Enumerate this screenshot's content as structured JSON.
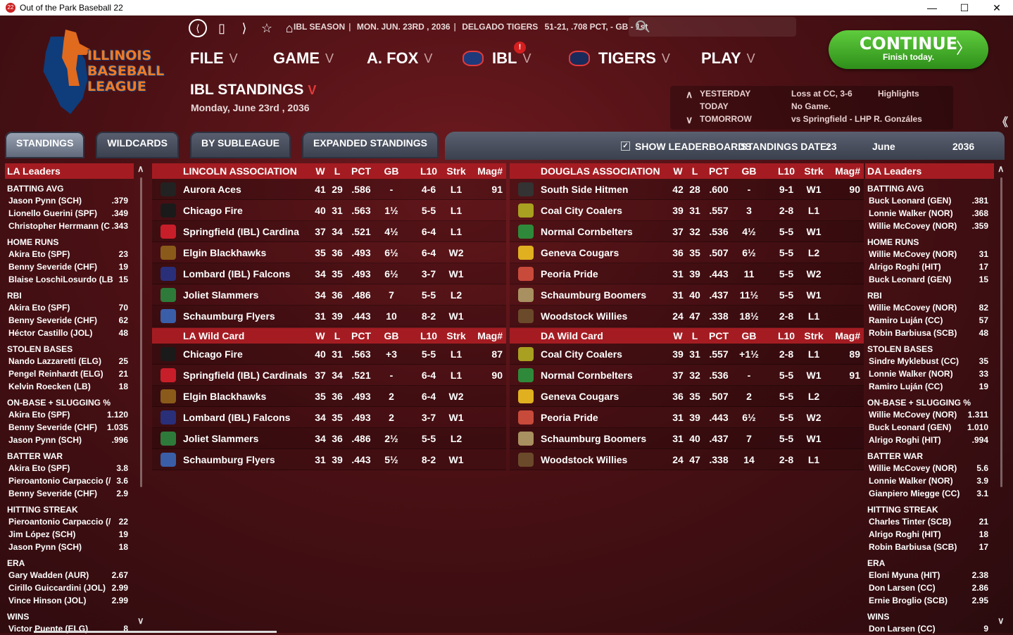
{
  "window": {
    "title": "Out of the Park Baseball 22",
    "app_icon": "22",
    "minimize": "—",
    "maximize": "☐",
    "close": "✕"
  },
  "logo": {
    "line1": "ILLINOIS",
    "line2": "BASEBALL",
    "line3": "LEAGUE"
  },
  "nav": {
    "back": "⟨",
    "doc": "▯",
    "forward": "⟩",
    "star": "☆",
    "home": "⌂"
  },
  "info": {
    "season": "IBL SEASON",
    "date": "MON. JUN. 23RD , 2036",
    "team": "DELGADO TIGERS",
    "record": "51-21, .708 PCT, - GB - 1st"
  },
  "menus": [
    {
      "label": "FILE"
    },
    {
      "label": "GAME"
    },
    {
      "label": "A. FOX"
    },
    {
      "label": "IBL",
      "badge": "!"
    },
    {
      "label": "TIGERS"
    },
    {
      "label": "PLAY"
    }
  ],
  "chevron": "V",
  "continue": {
    "label": "CONTINUE",
    "sub": "Finish today.",
    "arrow": "〉"
  },
  "page": {
    "title": "IBL STANDINGS",
    "date": "Monday, June 23rd , 2036"
  },
  "schedule": {
    "yesterday_label": "YESTERDAY",
    "yesterday": "Loss at CC, 3-6",
    "highlights": "Highlights",
    "today_label": "TODAY",
    "today": "No Game.",
    "tomorrow_label": "TOMORROW",
    "tomorrow": "vs Springfield - LHP R. Gonzáles"
  },
  "tabs": [
    "STANDINGS",
    "WILDCARDS",
    "BY SUBLEAGUE",
    "EXPANDED STANDINGS"
  ],
  "options": {
    "check": "✓",
    "show_leaderboards": "SHOW LEADERBOARDS",
    "standings_date": "STANDINGS DATE:",
    "day": "23",
    "month": "June",
    "year": "2036"
  },
  "columns": {
    "w": "W",
    "l": "L",
    "pct": "PCT",
    "gb": "GB",
    "l10": "L10",
    "strk": "Strk",
    "mag": "Mag#"
  },
  "la_leaders": {
    "title": "LA Leaders",
    "cats": [
      {
        "name": "BATTING AVG",
        "rows": [
          [
            "Jason Pynn (SCH)",
            ".379"
          ],
          [
            "Lionello Guerini (SPF)",
            ".349"
          ],
          [
            "Christopher Herrmann (C",
            ".343"
          ]
        ]
      },
      {
        "name": "HOME RUNS",
        "rows": [
          [
            "Akira Eto (SPF)",
            "23"
          ],
          [
            "Benny Severide (CHF)",
            "19"
          ],
          [
            "Blaise LoschiLosurdo (LB",
            "15"
          ]
        ]
      },
      {
        "name": "RBI",
        "rows": [
          [
            "Akira Eto (SPF)",
            "70"
          ],
          [
            "Benny Severide (CHF)",
            "62"
          ],
          [
            "Héctor Castillo (JOL)",
            "48"
          ]
        ]
      },
      {
        "name": "STOLEN BASES",
        "rows": [
          [
            "Nando Lazzaretti (ELG)",
            "25"
          ],
          [
            "Pengel Reinhardt (ELG)",
            "21"
          ],
          [
            "Kelvin Roecken (LB)",
            "18"
          ]
        ]
      },
      {
        "name": "ON-BASE + SLUGGING %",
        "rows": [
          [
            "Akira Eto (SPF)",
            "1.120"
          ],
          [
            "Benny Severide (CHF)",
            "1.035"
          ],
          [
            "Jason Pynn (SCH)",
            ".996"
          ]
        ]
      },
      {
        "name": "BATTER WAR",
        "rows": [
          [
            "Akira Eto (SPF)",
            "3.8"
          ],
          [
            "Pieroantonio Carpaccio (/",
            "3.6"
          ],
          [
            "Benny Severide (CHF)",
            "2.9"
          ]
        ]
      },
      {
        "name": "HITTING STREAK",
        "rows": [
          [
            "Pieroantonio Carpaccio (/",
            "22"
          ],
          [
            "Jim López (SCH)",
            "19"
          ],
          [
            "Jason Pynn (SCH)",
            "18"
          ]
        ]
      },
      {
        "name": "ERA",
        "rows": [
          [
            "Gary Wadden (AUR)",
            "2.67"
          ],
          [
            "Cirillo Guiccardini (JOL)",
            "2.99"
          ],
          [
            "Vince Hinson (JOL)",
            "2.99"
          ]
        ]
      },
      {
        "name": "WINS",
        "rows": [
          [
            "Victor Puente (ELG)",
            "8"
          ]
        ]
      }
    ]
  },
  "da_leaders": {
    "title": "DA Leaders",
    "cats": [
      {
        "name": "BATTING AVG",
        "rows": [
          [
            "Buck Leonard (GEN)",
            ".381"
          ],
          [
            "Lonnie Walker (NOR)",
            ".368"
          ],
          [
            "Willie McCovey (NOR)",
            ".359"
          ]
        ]
      },
      {
        "name": "HOME RUNS",
        "rows": [
          [
            "Willie McCovey (NOR)",
            "31"
          ],
          [
            "Alrigo Roghi (HIT)",
            "17"
          ],
          [
            "Buck Leonard (GEN)",
            "15"
          ]
        ]
      },
      {
        "name": "RBI",
        "rows": [
          [
            "Willie McCovey (NOR)",
            "82"
          ],
          [
            "Ramiro Luján (CC)",
            "57"
          ],
          [
            "Robin Barbiusa (SCB)",
            "48"
          ]
        ]
      },
      {
        "name": "STOLEN BASES",
        "rows": [
          [
            "Sindre Myklebust (CC)",
            "35"
          ],
          [
            "Lonnie Walker (NOR)",
            "33"
          ],
          [
            "Ramiro Luján (CC)",
            "19"
          ]
        ]
      },
      {
        "name": "ON-BASE + SLUGGING %",
        "rows": [
          [
            "Willie McCovey (NOR)",
            "1.311"
          ],
          [
            "Buck Leonard (GEN)",
            "1.010"
          ],
          [
            "Alrigo Roghi (HIT)",
            ".994"
          ]
        ]
      },
      {
        "name": "BATTER WAR",
        "rows": [
          [
            "Willie McCovey (NOR)",
            "5.6"
          ],
          [
            "Lonnie Walker (NOR)",
            "3.9"
          ],
          [
            "Gianpiero Miegge (CC)",
            "3.1"
          ]
        ]
      },
      {
        "name": "HITTING STREAK",
        "rows": [
          [
            "Charles Tinter (SCB)",
            "21"
          ],
          [
            "Alrigo Roghi (HIT)",
            "18"
          ],
          [
            "Robin Barbiusa (SCB)",
            "17"
          ]
        ]
      },
      {
        "name": "ERA",
        "rows": [
          [
            "Eloni Myuna (HIT)",
            "2.38"
          ],
          [
            "Don Larsen (CC)",
            "2.86"
          ],
          [
            "Ernie Broglio (SCB)",
            "2.95"
          ]
        ]
      },
      {
        "name": "WINS",
        "rows": [
          [
            "Don Larsen (CC)",
            "9"
          ]
        ]
      }
    ]
  },
  "tables": {
    "la": {
      "title": "LINCOLN ASSOCIATION",
      "rows": [
        {
          "team": "Aurora Aces",
          "w": "41",
          "l": "29",
          "pct": ".586",
          "gb": "-",
          "l10": "4-6",
          "strk": "L1",
          "mag": "91",
          "color": "#222222"
        },
        {
          "team": "Chicago Fire",
          "w": "40",
          "l": "31",
          "pct": ".563",
          "gb": "1½",
          "l10": "5-5",
          "strk": "L1",
          "mag": "",
          "color": "#1a1a1a"
        },
        {
          "team": "Springfield (IBL) Cardina",
          "w": "37",
          "l": "34",
          "pct": ".521",
          "gb": "4½",
          "l10": "6-4",
          "strk": "L1",
          "mag": "",
          "color": "#c81e2a"
        },
        {
          "team": "Elgin Blackhawks",
          "w": "35",
          "l": "36",
          "pct": ".493",
          "gb": "6½",
          "l10": "6-4",
          "strk": "W2",
          "mag": "",
          "color": "#8a5a1a"
        },
        {
          "team": "Lombard (IBL) Falcons",
          "w": "34",
          "l": "35",
          "pct": ".493",
          "gb": "6½",
          "l10": "3-7",
          "strk": "W1",
          "mag": "",
          "color": "#2a2f7a"
        },
        {
          "team": "Joliet Slammers",
          "w": "34",
          "l": "36",
          "pct": ".486",
          "gb": "7",
          "l10": "5-5",
          "strk": "L2",
          "mag": "",
          "color": "#2e7a3a"
        },
        {
          "team": "Schaumburg Flyers",
          "w": "31",
          "l": "39",
          "pct": ".443",
          "gb": "10",
          "l10": "8-2",
          "strk": "W1",
          "mag": "",
          "color": "#3a5ea8"
        }
      ]
    },
    "la_wc": {
      "title": "LA Wild Card",
      "rows": [
        {
          "team": "Chicago Fire",
          "w": "40",
          "l": "31",
          "pct": ".563",
          "gb": "+3",
          "l10": "5-5",
          "strk": "L1",
          "mag": "87",
          "color": "#1a1a1a"
        },
        {
          "team": "Springfield (IBL) Cardinals",
          "w": "37",
          "l": "34",
          "pct": ".521",
          "gb": "-",
          "l10": "6-4",
          "strk": "L1",
          "mag": "90",
          "color": "#c81e2a"
        },
        {
          "team": "Elgin Blackhawks",
          "w": "35",
          "l": "36",
          "pct": ".493",
          "gb": "2",
          "l10": "6-4",
          "strk": "W2",
          "mag": "",
          "color": "#8a5a1a"
        },
        {
          "team": "Lombard (IBL) Falcons",
          "w": "34",
          "l": "35",
          "pct": ".493",
          "gb": "2",
          "l10": "3-7",
          "strk": "W1",
          "mag": "",
          "color": "#2a2f7a"
        },
        {
          "team": "Joliet Slammers",
          "w": "34",
          "l": "36",
          "pct": ".486",
          "gb": "2½",
          "l10": "5-5",
          "strk": "L2",
          "mag": "",
          "color": "#2e7a3a"
        },
        {
          "team": "Schaumburg Flyers",
          "w": "31",
          "l": "39",
          "pct": ".443",
          "gb": "5½",
          "l10": "8-2",
          "strk": "W1",
          "mag": "",
          "color": "#3a5ea8"
        }
      ]
    },
    "da": {
      "title": "DOUGLAS ASSOCIATION",
      "rows": [
        {
          "team": "South Side Hitmen",
          "w": "42",
          "l": "28",
          "pct": ".600",
          "gb": "-",
          "l10": "9-1",
          "strk": "W1",
          "mag": "90",
          "color": "#333333"
        },
        {
          "team": "Coal City Coalers",
          "w": "39",
          "l": "31",
          "pct": ".557",
          "gb": "3",
          "l10": "2-8",
          "strk": "L1",
          "mag": "",
          "color": "#a8a020"
        },
        {
          "team": "Normal Cornbelters",
          "w": "37",
          "l": "32",
          "pct": ".536",
          "gb": "4½",
          "l10": "5-5",
          "strk": "W1",
          "mag": "",
          "color": "#2e8a3a"
        },
        {
          "team": "Geneva Cougars",
          "w": "36",
          "l": "35",
          "pct": ".507",
          "gb": "6½",
          "l10": "5-5",
          "strk": "L2",
          "mag": "",
          "color": "#e0b020"
        },
        {
          "team": "Peoria Pride",
          "w": "31",
          "l": "39",
          "pct": ".443",
          "gb": "11",
          "l10": "5-5",
          "strk": "W2",
          "mag": "",
          "color": "#c84a3a"
        },
        {
          "team": "Schaumburg Boomers",
          "w": "31",
          "l": "40",
          "pct": ".437",
          "gb": "11½",
          "l10": "5-5",
          "strk": "W1",
          "mag": "",
          "color": "#a89060"
        },
        {
          "team": "Woodstock Willies",
          "w": "24",
          "l": "47",
          "pct": ".338",
          "gb": "18½",
          "l10": "2-8",
          "strk": "L1",
          "mag": "",
          "color": "#6a4a2a"
        }
      ]
    },
    "da_wc": {
      "title": "DA Wild Card",
      "rows": [
        {
          "team": "Coal City Coalers",
          "w": "39",
          "l": "31",
          "pct": ".557",
          "gb": "+1½",
          "l10": "2-8",
          "strk": "L1",
          "mag": "89",
          "color": "#a8a020"
        },
        {
          "team": "Normal Cornbelters",
          "w": "37",
          "l": "32",
          "pct": ".536",
          "gb": "-",
          "l10": "5-5",
          "strk": "W1",
          "mag": "91",
          "color": "#2e8a3a"
        },
        {
          "team": "Geneva Cougars",
          "w": "36",
          "l": "35",
          "pct": ".507",
          "gb": "2",
          "l10": "5-5",
          "strk": "L2",
          "mag": "",
          "color": "#e0b020"
        },
        {
          "team": "Peoria Pride",
          "w": "31",
          "l": "39",
          "pct": ".443",
          "gb": "6½",
          "l10": "5-5",
          "strk": "W2",
          "mag": "",
          "color": "#c84a3a"
        },
        {
          "team": "Schaumburg Boomers",
          "w": "31",
          "l": "40",
          "pct": ".437",
          "gb": "7",
          "l10": "5-5",
          "strk": "W1",
          "mag": "",
          "color": "#a89060"
        },
        {
          "team": "Woodstock Willies",
          "w": "24",
          "l": "47",
          "pct": ".338",
          "gb": "14",
          "l10": "2-8",
          "strk": "L1",
          "mag": "",
          "color": "#6a4a2a"
        }
      ]
    }
  },
  "scroll": {
    "up": "∧",
    "down": "∨",
    "collapse": "《"
  }
}
